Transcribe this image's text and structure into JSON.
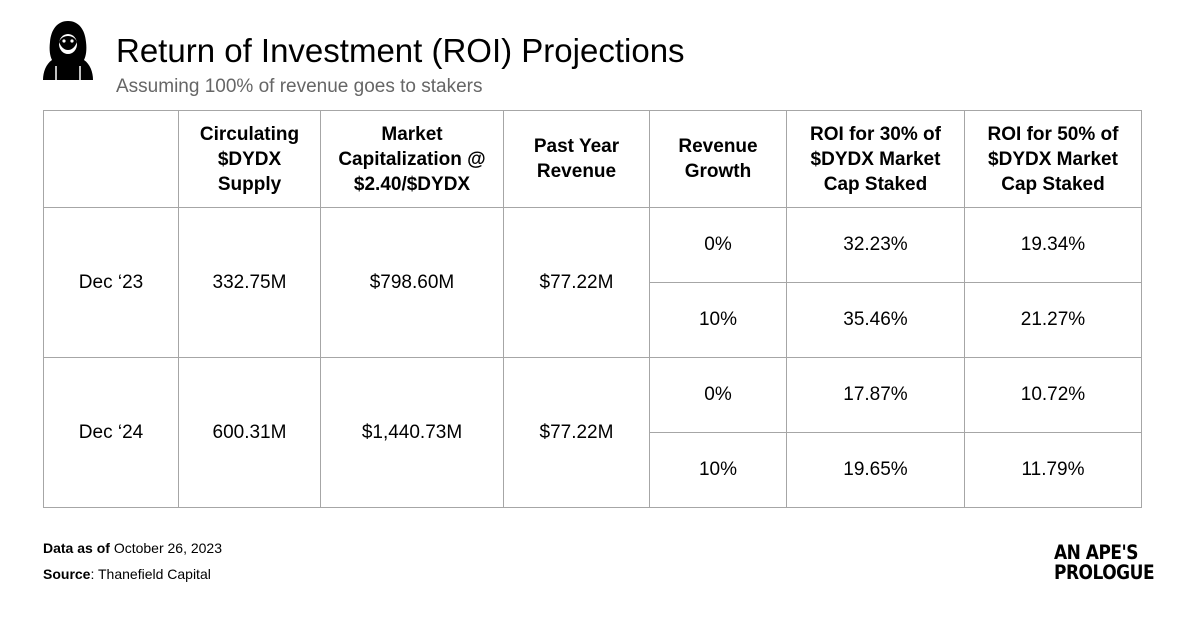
{
  "header": {
    "title": "Return of Investment (ROI) Projections",
    "subtitle": "Assuming 100% of revenue goes to stakers",
    "logo_icon": "hooded-ape-icon"
  },
  "table": {
    "columns": [
      "",
      "Circulating $DYDX Supply",
      "Market Capitalization @ $2.40/$DYDX",
      "Past Year Revenue",
      "Revenue Growth",
      "ROI for 30% of $DYDX Market Cap Staked",
      "ROI for 50% of $DYDX Market Cap Staked"
    ],
    "groups": [
      {
        "period": "Dec ‘23",
        "supply": "332.75M",
        "market_cap": "$798.60M",
        "past_revenue": "$77.22M",
        "rows": [
          {
            "growth": "0%",
            "roi30": "32.23%",
            "roi50": "19.34%"
          },
          {
            "growth": "10%",
            "roi30": "35.46%",
            "roi50": "21.27%"
          }
        ]
      },
      {
        "period": "Dec ‘24",
        "supply": "600.31M",
        "market_cap": "$1,440.73M",
        "past_revenue": "$77.22M",
        "rows": [
          {
            "growth": "0%",
            "roi30": "17.87%",
            "roi50": "10.72%"
          },
          {
            "growth": "10%",
            "roi30": "19.65%",
            "roi50": "11.79%"
          }
        ]
      }
    ]
  },
  "footer": {
    "data_label": "Data as of",
    "data_value": "October 26, 2023",
    "source_label": "Source",
    "source_value": "Thanefield Capital"
  },
  "brand": {
    "line1": "AN APE'S",
    "line2": "PROLOGUE"
  }
}
